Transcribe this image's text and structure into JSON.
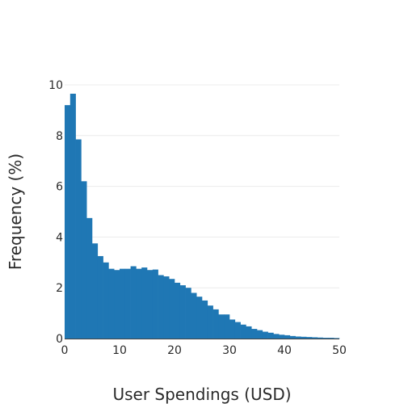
{
  "chart_data": {
    "type": "bar",
    "title": "",
    "xlabel": "User Spendings (USD)",
    "ylabel": "Frequency (%)",
    "xlim": [
      0,
      50
    ],
    "ylim": [
      0,
      10
    ],
    "x_ticks": [
      "0",
      "10",
      "20",
      "30",
      "40",
      "50"
    ],
    "y_ticks": [
      "0",
      "2",
      "4",
      "6",
      "8",
      "10"
    ],
    "grid": true,
    "bar_color": "#1f77b4",
    "bin_width": 1,
    "bin_starts": [
      0,
      1,
      2,
      3,
      4,
      5,
      6,
      7,
      8,
      9,
      10,
      11,
      12,
      13,
      14,
      15,
      16,
      17,
      18,
      19,
      20,
      21,
      22,
      23,
      24,
      25,
      26,
      27,
      28,
      29,
      30,
      31,
      32,
      33,
      34,
      35,
      36,
      37,
      38,
      39,
      40,
      41,
      42,
      43,
      44,
      45,
      46,
      47,
      48,
      49
    ],
    "values": [
      9.2,
      9.65,
      7.85,
      6.2,
      4.75,
      3.75,
      3.25,
      3.0,
      2.75,
      2.7,
      2.75,
      2.75,
      2.85,
      2.75,
      2.8,
      2.7,
      2.72,
      2.5,
      2.45,
      2.35,
      2.2,
      2.1,
      2.0,
      1.8,
      1.65,
      1.5,
      1.3,
      1.15,
      0.95,
      0.95,
      0.75,
      0.65,
      0.55,
      0.48,
      0.38,
      0.33,
      0.27,
      0.23,
      0.18,
      0.15,
      0.13,
      0.1,
      0.08,
      0.07,
      0.06,
      0.05,
      0.04,
      0.03,
      0.03,
      0.02
    ]
  }
}
